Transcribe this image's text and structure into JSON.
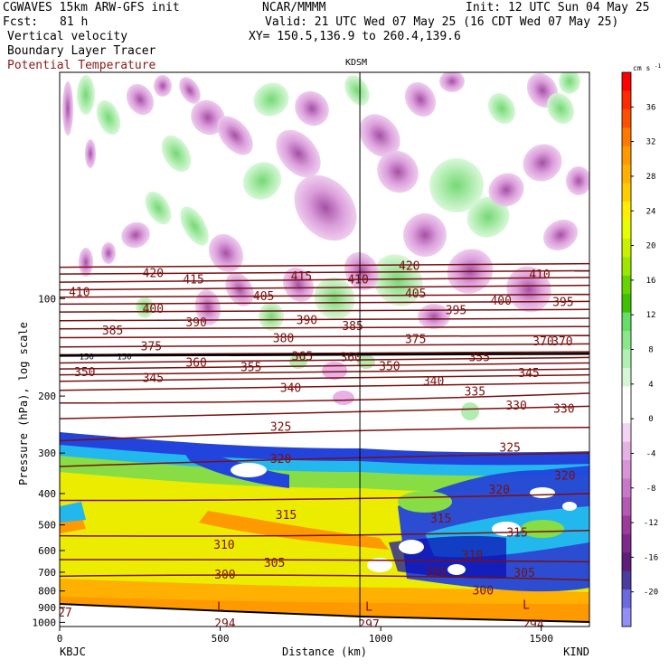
{
  "header": {
    "model": "CGWAVES 15km ARW-GFS init",
    "fcst_label": "Fcst:",
    "fcst_value": "81 h",
    "org": "NCAR/MMMM",
    "init": "Init: 12 UTC Sun 04 May 25",
    "valid": "Valid: 21 UTC Wed 07 May 25 (16 CDT Wed 07 May 25)",
    "xy": "XY= 150.5,136.9 to 260.4,139.6",
    "field1": "Vertical velocity",
    "field2": "Boundary Layer Tracer",
    "field3": "Potential Temperature"
  },
  "colors": {
    "theta": "#7a1010",
    "field3_text": "#8b1a1a"
  },
  "chart_data": {
    "type": "heatmap",
    "title": "",
    "xlabel": "Distance (km)",
    "ylabel": "Pressure (hPa), log scale",
    "x_scale": "linear",
    "y_scale": "log",
    "xlim": [
      0,
      1650
    ],
    "ylim": [
      1030,
      20
    ],
    "x_ticks": [
      0,
      500,
      1000,
      1500
    ],
    "y_ticks": [
      100,
      200,
      300,
      400,
      500,
      600,
      700,
      800,
      900,
      1000
    ],
    "left_station": "KBJC",
    "right_station": "KIND",
    "mid_station": {
      "name": "KDSM",
      "distance_km": 935
    },
    "colorbar": {
      "unit_label": "cm s",
      "unit_sup": "-1",
      "ticks": [
        36,
        32,
        28,
        24,
        20,
        16,
        12,
        8,
        4,
        0,
        -4,
        -8,
        -12,
        -16,
        -20
      ],
      "colors": [
        "#ff0000",
        "#ff2a00",
        "#ff5000",
        "#ff7800",
        "#ff9900",
        "#ffb000",
        "#ffcc00",
        "#ffee00",
        "#e6ff00",
        "#c8f000",
        "#9ee600",
        "#66d400",
        "#40c000",
        "#66dd66",
        "#8ae88a",
        "#b0f0b0",
        "#d6f7d6",
        "#ffffff",
        "#ffffff",
        "#f3d4f3",
        "#e6b2e6",
        "#d794d7",
        "#c878c8",
        "#b45ab4",
        "#9b3c9b",
        "#7e2a8a",
        "#5e1e7a",
        "#4b3ca0",
        "#6a6ae0",
        "#8f8ff5"
      ]
    },
    "theta_labels": [
      {
        "v": "420",
        "x": 170,
        "p": 83
      },
      {
        "v": "415",
        "x": 215,
        "p": 87
      },
      {
        "v": "415",
        "x": 335,
        "p": 85
      },
      {
        "v": "410",
        "x": 398,
        "p": 87
      },
      {
        "v": "420",
        "x": 455,
        "p": 79
      },
      {
        "v": "410",
        "x": 600,
        "p": 84
      },
      {
        "v": "410",
        "x": 88,
        "p": 95
      },
      {
        "v": "400",
        "x": 170,
        "p": 107
      },
      {
        "v": "405",
        "x": 293,
        "p": 98
      },
      {
        "v": "405",
        "x": 462,
        "p": 96
      },
      {
        "v": "400",
        "x": 557,
        "p": 101
      },
      {
        "v": "395",
        "x": 626,
        "p": 102
      },
      {
        "v": "390",
        "x": 218,
        "p": 118
      },
      {
        "v": "390",
        "x": 341,
        "p": 116
      },
      {
        "v": "395",
        "x": 507,
        "p": 108
      },
      {
        "v": "385",
        "x": 125,
        "p": 125
      },
      {
        "v": "385",
        "x": 392,
        "p": 121
      },
      {
        "v": "380",
        "x": 315,
        "p": 132
      },
      {
        "v": "375",
        "x": 168,
        "p": 140
      },
      {
        "v": "375",
        "x": 462,
        "p": 133
      },
      {
        "v": "370",
        "x": 604,
        "p": 135
      },
      {
        "v": "370",
        "x": 625,
        "p": 135
      },
      {
        "v": "360",
        "x": 218,
        "p": 157
      },
      {
        "v": "355",
        "x": 279,
        "p": 162
      },
      {
        "v": "365",
        "x": 336,
        "p": 150
      },
      {
        "v": "360",
        "x": 390,
        "p": 151
      },
      {
        "v": "350",
        "x": 433,
        "p": 161
      },
      {
        "v": "355",
        "x": 533,
        "p": 151
      },
      {
        "v": "350",
        "x": 94,
        "p": 168
      },
      {
        "v": "345",
        "x": 170,
        "p": 175
      },
      {
        "v": "340",
        "x": 323,
        "p": 188
      },
      {
        "v": "340",
        "x": 482,
        "p": 179
      },
      {
        "v": "345",
        "x": 588,
        "p": 169
      },
      {
        "v": "335",
        "x": 528,
        "p": 193
      },
      {
        "v": "330",
        "x": 574,
        "p": 213
      },
      {
        "v": "330",
        "x": 627,
        "p": 218
      },
      {
        "v": "325",
        "x": 312,
        "p": 248
      },
      {
        "v": "325",
        "x": 567,
        "p": 287
      },
      {
        "v": "320",
        "x": 312,
        "p": 311
      },
      {
        "v": "320",
        "x": 555,
        "p": 388
      },
      {
        "v": "320",
        "x": 628,
        "p": 351
      },
      {
        "v": "315",
        "x": 318,
        "p": 464
      },
      {
        "v": "315",
        "x": 490,
        "p": 476
      },
      {
        "v": "315",
        "x": 575,
        "p": 526
      },
      {
        "v": "310",
        "x": 249,
        "p": 574
      },
      {
        "v": "310",
        "x": 525,
        "p": 618
      },
      {
        "v": "305",
        "x": 305,
        "p": 652
      },
      {
        "v": "305",
        "x": 485,
        "p": 695
      },
      {
        "v": "305",
        "x": 583,
        "p": 700
      },
      {
        "v": "300",
        "x": 250,
        "p": 710
      },
      {
        "v": "300",
        "x": 537,
        "p": 795
      },
      {
        "v": "297",
        "x": 410,
        "p": 1010
      },
      {
        "v": "294",
        "x": 250,
        "p": 1005
      },
      {
        "v": "294",
        "x": 593,
        "p": 1010
      },
      {
        "v": "27",
        "x": 72,
        "p": 930
      }
    ],
    "small_labels": [
      {
        "v": "150",
        "x": 96,
        "p": 150
      },
      {
        "v": "150",
        "x": 138,
        "p": 150
      }
    ],
    "L_marks": [
      {
        "x": 245,
        "p": 890
      },
      {
        "x": 410,
        "p": 890
      },
      {
        "x": 585,
        "p": 880
      }
    ],
    "theta_lines": [
      {
        "v": 420,
        "p0": 80,
        "p1": 78
      },
      {
        "v": 415,
        "p0": 84,
        "p1": 82
      },
      {
        "v": 410,
        "p0": 89,
        "p1": 86
      },
      {
        "v": 405,
        "p0": 94,
        "p1": 91
      },
      {
        "v": 400,
        "p0": 99,
        "p1": 97
      },
      {
        "v": 395,
        "p0": 104,
        "p1": 102
      },
      {
        "v": 390,
        "p0": 110,
        "p1": 108
      },
      {
        "v": 385,
        "p0": 117,
        "p1": 115
      },
      {
        "v": 380,
        "p0": 124,
        "p1": 122
      },
      {
        "v": 375,
        "p0": 132,
        "p1": 130
      },
      {
        "v": 370,
        "p0": 141,
        "p1": 138
      },
      {
        "v": 365,
        "p0": 149,
        "p1": 146
      },
      {
        "v": 360,
        "p0": 158,
        "p1": 152
      },
      {
        "v": 355,
        "p0": 165,
        "p1": 158
      },
      {
        "v": 350,
        "p0": 172,
        "p1": 165
      },
      {
        "v": 345,
        "p0": 180,
        "p1": 172
      },
      {
        "v": 340,
        "p0": 192,
        "p1": 182
      },
      {
        "v": 335,
        "p0": 210,
        "p1": 196
      },
      {
        "v": 330,
        "p0": 235,
        "p1": 215
      },
      {
        "v": 325,
        "p0": 275,
        "p1": 250
      },
      {
        "v": 320,
        "p0": 330,
        "p1": 300
      },
      {
        "v": 315,
        "p0": 420,
        "p1": 400
      },
      {
        "v": 310,
        "p0": 540,
        "p1": 520
      },
      {
        "v": 305,
        "p0": 640,
        "p1": 650
      },
      {
        "v": 300,
        "p0": 720,
        "p1": 740
      }
    ]
  }
}
